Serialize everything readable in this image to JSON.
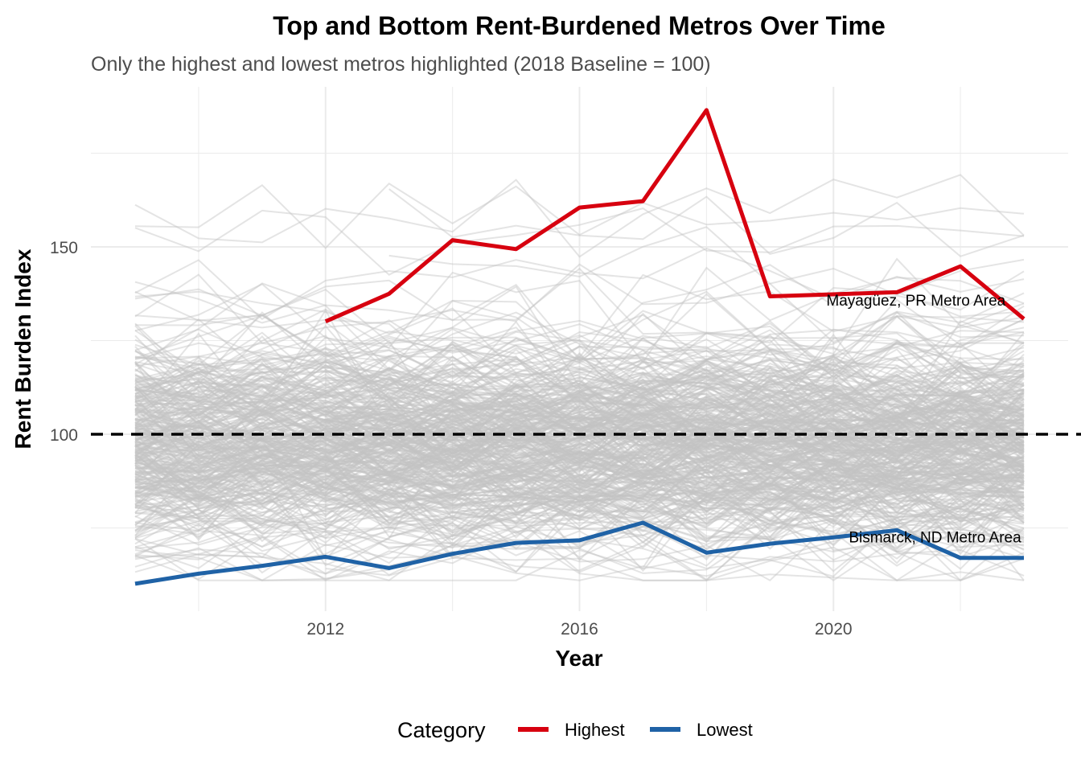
{
  "chart_data": {
    "type": "line",
    "title": "Top and Bottom Rent-Burdened Metros Over Time",
    "subtitle": "Only the highest and lowest metros highlighted (2018 Baseline = 100)",
    "xlabel": "Year",
    "ylabel": "Rent Burden Index",
    "xlim": [
      2009,
      2023
    ],
    "ylim": [
      58,
      192
    ],
    "x_ticks": [
      2012,
      2016,
      2020
    ],
    "y_ticks": [
      100,
      150
    ],
    "reference_line": {
      "y": 100,
      "style": "dashed",
      "color": "#000000"
    },
    "grid": true,
    "legend": {
      "title": "Category",
      "position": "bottom",
      "entries": [
        {
          "label": "Highest",
          "color": "#d7000f"
        },
        {
          "label": "Lowest",
          "color": "#1f62a6"
        }
      ]
    },
    "series": [
      {
        "name": "Mayagüez, PR Metro Area",
        "category": "Highest",
        "color": "#d7000f",
        "x": [
          2012,
          2013,
          2014,
          2015,
          2016,
          2017,
          2018,
          2019,
          2021,
          2022,
          2023
        ],
        "values": [
          130.1,
          137.5,
          151.8,
          149.4,
          160.5,
          162.2,
          186.5,
          136.8,
          137.9,
          144.8,
          130.8
        ]
      },
      {
        "name": "Bismarck, ND Metro Area",
        "category": "Lowest",
        "color": "#1f62a6",
        "x": [
          2009,
          2010,
          2011,
          2012,
          2013,
          2014,
          2015,
          2016,
          2017,
          2018,
          2019,
          2020,
          2021,
          2022,
          2023
        ],
        "values": [
          60.1,
          62.8,
          64.9,
          67.3,
          64.3,
          68.1,
          71.0,
          71.7,
          76.4,
          68.4,
          70.8,
          72.5,
          74.4,
          67.0,
          67.0
        ]
      }
    ],
    "annotations": [
      {
        "text": "Mayagüez, PR Metro Area",
        "x": 2021.3,
        "y": 134.3
      },
      {
        "text": "Bismarck, ND Metro Area",
        "x": 2021.6,
        "y": 71.1
      }
    ],
    "background_series": {
      "count": 380,
      "color": "#c4c4c4",
      "seed": 7
    }
  }
}
